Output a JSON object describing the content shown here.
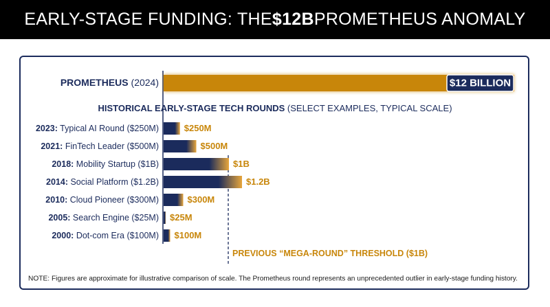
{
  "header": {
    "title_prefix": "EARLY-STAGE FUNDING: THE ",
    "title_bold": "$12B",
    "title_suffix": " PROMETHEUS ANOMALY"
  },
  "colors": {
    "navy": "#1b2b5c",
    "gold": "#c8860a",
    "header_bg": "#000000"
  },
  "chart_data": {
    "type": "bar",
    "featured": {
      "label_bold": "PROMETHEUS",
      "label_rest": " (2024)",
      "value": 12000,
      "value_label": "$12 BILLION"
    },
    "section_title_bold": "HISTORICAL EARLY-STAGE TECH ROUNDS",
    "section_title_rest": " (SELECT EXAMPLES, TYPICAL SCALE)",
    "unit": "$M",
    "rows": [
      {
        "year": "2023:",
        "label": " Typical AI Round ($250M)",
        "value": 250,
        "value_label": "$250M"
      },
      {
        "year": "2021:",
        "label": " FinTech Leader ($500M)",
        "value": 500,
        "value_label": "$500M"
      },
      {
        "year": "2018:",
        "label": " Mobility Startup ($1B)",
        "value": 1000,
        "value_label": "$1B"
      },
      {
        "year": "2014:",
        "label": " Social Platform ($1.2B)",
        "value": 1200,
        "value_label": "$1.2B"
      },
      {
        "year": "2010:",
        "label": " Cloud Pioneer ($300M)",
        "value": 300,
        "value_label": "$300M"
      },
      {
        "year": "2005:",
        "label": " Search Engine ($25M)",
        "value": 25,
        "value_label": "$25M"
      },
      {
        "year": "2000:",
        "label": " Dot-com Era ($100M)",
        "value": 100,
        "value_label": "$100M"
      }
    ],
    "threshold": {
      "value": 1000,
      "label": "PREVIOUS “MEGA-ROUND” THRESHOLD ($1B)"
    },
    "note": "NOTE: Figures are approximate for illustrative comparison of scale. The Prometheus round represents an unprecedented outlier in early-stage funding history."
  }
}
